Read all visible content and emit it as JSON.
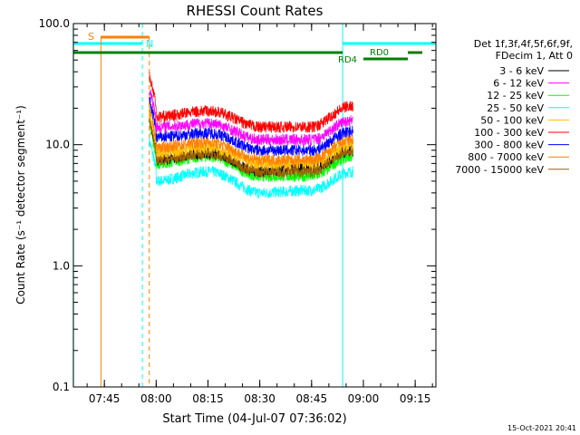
{
  "chart_data": {
    "type": "line",
    "title": "RHESSI Count Rates",
    "xlabel": "Start Time (04-Jul-07 07:36:02)",
    "ylabel": "Count Rate (s⁻¹ detector segment⁻¹)",
    "y_scale": "log",
    "ylim": [
      0.1,
      100.0
    ],
    "xlim": [
      "07:36:02",
      "09:21:00"
    ],
    "y_ticks": [
      "0.1",
      "1.0",
      "10.0",
      "100.0"
    ],
    "x_ticks": [
      "07:45",
      "08:00",
      "08:15",
      "08:30",
      "08:45",
      "09:00",
      "09:15"
    ],
    "legend_header": [
      "Det 1f,3f,4f,5f,6f,9f,",
      "FDecim 1, Att 0"
    ],
    "legend_position": "right",
    "data_gap": {
      "before": "07:58",
      "after": "08:57"
    },
    "series": [
      {
        "name": "3 - 6 keV",
        "color": "#000000",
        "values": {
          "08:00": 7.5,
          "08:15": 8.5,
          "08:30": 6.0,
          "08:45": 6.5,
          "08:57": 9.0
        }
      },
      {
        "name": "6 - 12 keV",
        "color": "#ff00ff",
        "values": {
          "08:00": 14.0,
          "08:15": 15.0,
          "08:30": 11.0,
          "08:45": 11.0,
          "08:57": 16.0
        }
      },
      {
        "name": "12 - 25 keV",
        "color": "#00ff00",
        "values": {
          "08:00": 7.0,
          "08:15": 8.0,
          "08:30": 5.5,
          "08:45": 5.5,
          "08:57": 8.0
        }
      },
      {
        "name": "25 - 50 keV",
        "color": "#00ffff",
        "values": {
          "08:00": 5.0,
          "08:15": 6.0,
          "08:30": 4.0,
          "08:45": 4.2,
          "08:57": 6.0
        }
      },
      {
        "name": "50 - 100 keV",
        "color": "#ffc000",
        "values": {
          "08:00": 8.5,
          "08:15": 9.5,
          "08:30": 7.0,
          "08:45": 7.0,
          "08:57": 10.0
        }
      },
      {
        "name": "100 - 300 keV",
        "color": "#ff0000",
        "values": {
          "08:00": 17.0,
          "08:15": 19.0,
          "08:30": 14.0,
          "08:45": 14.0,
          "08:57": 21.0
        }
      },
      {
        "name": "300 - 800 keV",
        "color": "#0000ff",
        "values": {
          "08:00": 11.5,
          "08:15": 12.5,
          "08:30": 9.0,
          "08:45": 9.0,
          "08:57": 13.0
        }
      },
      {
        "name": "800 - 7000 keV",
        "color": "#ff8000",
        "values": {
          "08:00": 9.5,
          "08:15": 10.5,
          "08:30": 7.5,
          "08:45": 7.5,
          "08:57": 11.0
        }
      },
      {
        "name": "7000 - 15000 keV",
        "color": "#a06000",
        "values": {
          "08:00": 7.5,
          "08:15": 8.5,
          "08:30": 6.0,
          "08:45": 6.0,
          "08:57": 9.0
        }
      }
    ],
    "flags": {
      "saa": {
        "label": "S",
        "color": "#ff8000",
        "start": "07:44",
        "end": "07:58"
      },
      "night": {
        "label": "N",
        "color": "#00ffff",
        "start": "07:36",
        "end": "07:56",
        "end2_start": "08:54",
        "end2_end": "09:21"
      },
      "decim": [
        {
          "label": "RD4",
          "color": "#008000"
        },
        {
          "label": "RD0",
          "color": "#008000"
        }
      ]
    },
    "timestamp": "15-Oct-2021 20:41"
  }
}
